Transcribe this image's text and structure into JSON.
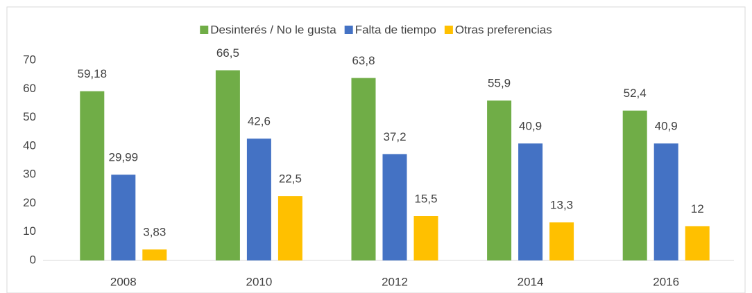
{
  "chart_data": {
    "type": "bar",
    "categories": [
      "2008",
      "2010",
      "2012",
      "2014",
      "2016"
    ],
    "series": [
      {
        "name": "Desinterés / No le gusta",
        "color": "#70ad47",
        "values": [
          59.18,
          66.5,
          63.8,
          55.9,
          52.4
        ],
        "value_labels": [
          "59,18",
          "66,5",
          "63,8",
          "55,9",
          "52,4"
        ]
      },
      {
        "name": "Falta de tiempo",
        "color": "#4472c4",
        "values": [
          29.99,
          42.6,
          37.2,
          40.9,
          40.9
        ],
        "value_labels": [
          "29,99",
          "42,6",
          "37,2",
          "40,9",
          "40,9"
        ]
      },
      {
        "name": "Otras preferencias",
        "color": "#ffc000",
        "values": [
          3.83,
          22.5,
          15.5,
          13.3,
          12
        ],
        "value_labels": [
          "3,83",
          "22,5",
          "15,5",
          "13,3",
          "12"
        ]
      }
    ],
    "ylim": [
      0,
      70
    ],
    "yticks": [
      0,
      10,
      20,
      30,
      40,
      50,
      60,
      70
    ],
    "grid": false,
    "legend": "top"
  }
}
